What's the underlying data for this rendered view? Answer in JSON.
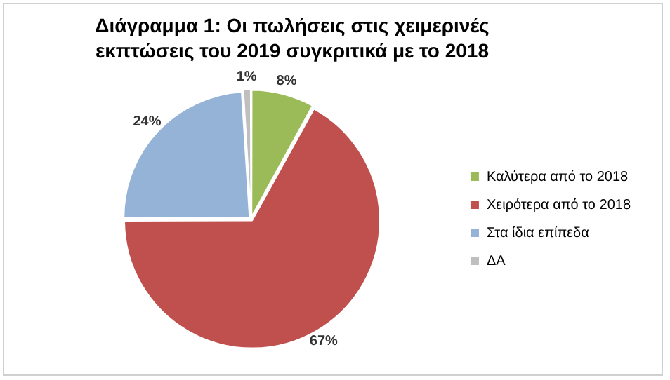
{
  "chart_data": {
    "type": "pie",
    "title": "Διάγραμμα 1: Οι πωλήσεις στις χειμερινές εκπτώσεις του 2019 συγκριτικά με το 2018",
    "categories": [
      "Καλύτερα από το 2018",
      "Χειρότερα από το 2018",
      "Στα ίδια επίπεδα",
      "ΔΑ"
    ],
    "values": [
      8,
      67,
      24,
      1
    ],
    "colors": [
      "#9bbb59",
      "#c0504d",
      "#95b3d7",
      "#bfbfbf"
    ],
    "value_labels": [
      "8%",
      "67%",
      "24%",
      "1%"
    ],
    "legend": "right"
  }
}
